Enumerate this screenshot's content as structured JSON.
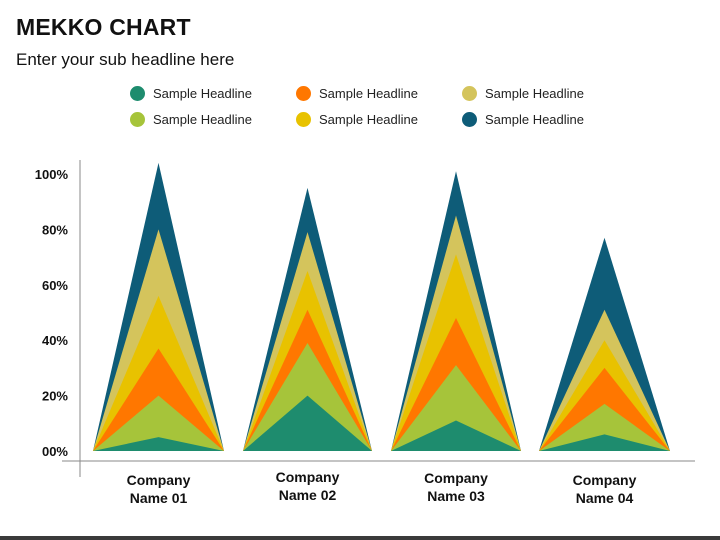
{
  "header": {
    "title": "MEKKO CHART",
    "subtitle": "Enter your sub headline here"
  },
  "chart_data": {
    "type": "area",
    "title": "",
    "xlabel": "",
    "ylabel": "",
    "ylim": [
      0,
      100
    ],
    "grid": false,
    "legend_placement": "top",
    "y_ticks": [
      "00%",
      "20%",
      "40%",
      "60%",
      "80%",
      "100%"
    ],
    "categories": [
      "Company Name 01",
      "Company Name 02",
      "Company Name 03",
      "Company Name 04"
    ],
    "category_label_lines": [
      [
        "Company",
        "Name 01"
      ],
      [
        "Company",
        "Name 02"
      ],
      [
        "Company",
        "Name 03"
      ],
      [
        "Company",
        "Name 04"
      ]
    ],
    "series": [
      {
        "name": "Sample Headline",
        "color": "#1E8C6E",
        "values": [
          5,
          20,
          11,
          6
        ]
      },
      {
        "name": "Sample Headline",
        "color": "#A6C43A",
        "values": [
          20,
          39,
          31,
          17
        ]
      },
      {
        "name": "Sample Headline",
        "color": "#FF7700",
        "values": [
          37,
          51,
          48,
          30
        ]
      },
      {
        "name": "Sample Headline",
        "color": "#E8C200",
        "values": [
          56,
          65,
          71,
          40
        ]
      },
      {
        "name": "Sample Headline",
        "color": "#D4C45C",
        "values": [
          80,
          79,
          85,
          51
        ]
      },
      {
        "name": "Sample Headline",
        "color": "#0E5C78",
        "values": [
          104,
          95,
          101,
          77
        ]
      }
    ]
  }
}
